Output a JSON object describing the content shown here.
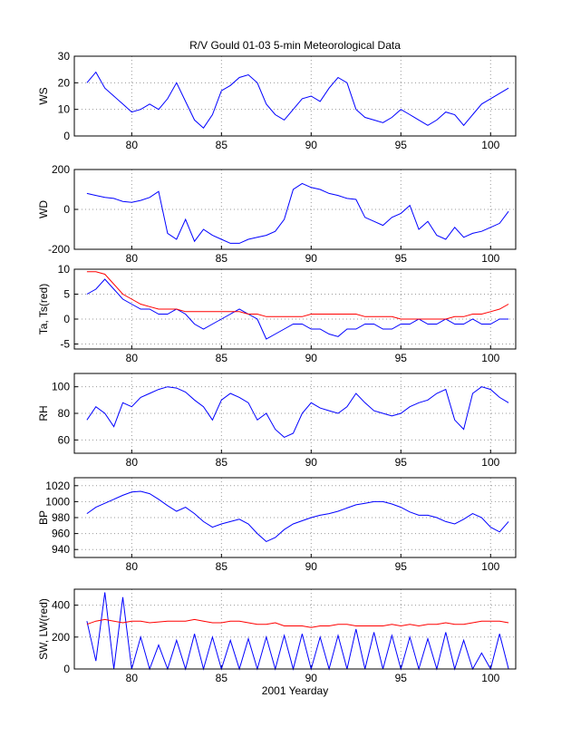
{
  "chart_data": [
    {
      "type": "line",
      "title": "R/V Gould 01-03 5-min Meteorological Data",
      "ylabel": "WS",
      "x": [
        77.5,
        78,
        78.5,
        79,
        79.5,
        80,
        80.5,
        81,
        81.5,
        82,
        82.5,
        83,
        83.5,
        84,
        84.5,
        85,
        85.5,
        86,
        86.5,
        87,
        87.5,
        88,
        88.5,
        89,
        89.5,
        90,
        90.5,
        91,
        91.5,
        92,
        92.5,
        93,
        93.5,
        94,
        94.5,
        95,
        95.5,
        96,
        96.5,
        97,
        97.5,
        98,
        98.5,
        99,
        99.5,
        100,
        100.5,
        101
      ],
      "xlim": [
        76.8,
        101.4
      ],
      "xticks": [
        80,
        85,
        90,
        95,
        100
      ],
      "ylim": [
        0,
        30
      ],
      "yticks": [
        0,
        10,
        20,
        30
      ],
      "grid": true,
      "series": [
        {
          "color": "#0000ff",
          "values": [
            20,
            24,
            18,
            15,
            12,
            9,
            10,
            12,
            10,
            14,
            20,
            13,
            6,
            3,
            8,
            17,
            19,
            22,
            23,
            20,
            12,
            8,
            6,
            10,
            14,
            15,
            13,
            18,
            22,
            20,
            10,
            7,
            6,
            5,
            7,
            10,
            8,
            6,
            4,
            6,
            9,
            8,
            4,
            8,
            12,
            14,
            16,
            18
          ]
        }
      ]
    },
    {
      "type": "line",
      "ylabel": "WD",
      "x": [
        77.5,
        78,
        78.5,
        79,
        79.5,
        80,
        80.5,
        81,
        81.5,
        82,
        82.5,
        83,
        83.5,
        84,
        84.5,
        85,
        85.5,
        86,
        86.5,
        87,
        87.5,
        88,
        88.5,
        89,
        89.5,
        90,
        90.5,
        91,
        91.5,
        92,
        92.5,
        93,
        93.5,
        94,
        94.5,
        95,
        95.5,
        96,
        96.5,
        97,
        97.5,
        98,
        98.5,
        99,
        99.5,
        100,
        100.5,
        101
      ],
      "xlim": [
        76.8,
        101.4
      ],
      "xticks": [
        80,
        85,
        90,
        95,
        100
      ],
      "ylim": [
        -200,
        200
      ],
      "yticks": [
        -200,
        0,
        200
      ],
      "grid": true,
      "series": [
        {
          "color": "#0000ff",
          "values": [
            80,
            70,
            60,
            55,
            40,
            35,
            45,
            60,
            90,
            -120,
            -150,
            -50,
            -160,
            -100,
            -130,
            -150,
            -170,
            -170,
            -150,
            -140,
            -130,
            -110,
            -50,
            100,
            130,
            110,
            100,
            80,
            70,
            55,
            50,
            -40,
            -60,
            -80,
            -40,
            -20,
            20,
            -100,
            -60,
            -130,
            -150,
            -90,
            -140,
            -120,
            -110,
            -90,
            -70,
            -10
          ]
        }
      ]
    },
    {
      "type": "line",
      "ylabel": "Ta, Ts(red)",
      "x": [
        77.5,
        78,
        78.5,
        79,
        79.5,
        80,
        80.5,
        81,
        81.5,
        82,
        82.5,
        83,
        83.5,
        84,
        84.5,
        85,
        85.5,
        86,
        86.5,
        87,
        87.5,
        88,
        88.5,
        89,
        89.5,
        90,
        90.5,
        91,
        91.5,
        92,
        92.5,
        93,
        93.5,
        94,
        94.5,
        95,
        95.5,
        96,
        96.5,
        97,
        97.5,
        98,
        98.5,
        99,
        99.5,
        100,
        100.5,
        101
      ],
      "xlim": [
        76.8,
        101.4
      ],
      "xticks": [
        80,
        85,
        90,
        95,
        100
      ],
      "ylim": [
        -6,
        10
      ],
      "yticks": [
        -5,
        0,
        5,
        10
      ],
      "grid": true,
      "series": [
        {
          "color": "#0000ff",
          "values": [
            5,
            6,
            8,
            6,
            4,
            3,
            2,
            2,
            1,
            1,
            2,
            1,
            -1,
            -2,
            -1,
            0,
            1,
            2,
            1,
            0,
            -4,
            -3,
            -2,
            -1,
            -1,
            -2,
            -2,
            -3,
            -3.5,
            -2,
            -2,
            -1,
            -1,
            -2,
            -2,
            -1,
            -1,
            0,
            -1,
            -1,
            0,
            -1,
            -1,
            0,
            -1,
            -1,
            0,
            0
          ]
        },
        {
          "color": "#ff0000",
          "values": [
            9.5,
            9.5,
            9,
            7,
            5,
            4,
            3,
            2.5,
            2,
            2,
            2,
            1.5,
            1.5,
            1.5,
            1.5,
            1.5,
            1.5,
            1.5,
            1,
            1,
            0.5,
            0.5,
            0.5,
            0.5,
            0.5,
            1,
            1,
            1,
            1,
            1,
            1,
            0.5,
            0.5,
            0.5,
            0.5,
            0,
            0,
            0,
            0,
            0,
            0,
            0.5,
            0.5,
            1,
            1,
            1.5,
            2,
            3
          ]
        }
      ]
    },
    {
      "type": "line",
      "ylabel": "RH",
      "x": [
        77.5,
        78,
        78.5,
        79,
        79.5,
        80,
        80.5,
        81,
        81.5,
        82,
        82.5,
        83,
        83.5,
        84,
        84.5,
        85,
        85.5,
        86,
        86.5,
        87,
        87.5,
        88,
        88.5,
        89,
        89.5,
        90,
        90.5,
        91,
        91.5,
        92,
        92.5,
        93,
        93.5,
        94,
        94.5,
        95,
        95.5,
        96,
        96.5,
        97,
        97.5,
        98,
        98.5,
        99,
        99.5,
        100,
        100.5,
        101
      ],
      "xlim": [
        76.8,
        101.4
      ],
      "xticks": [
        80,
        85,
        90,
        95,
        100
      ],
      "ylim": [
        50,
        110
      ],
      "yticks": [
        60,
        80,
        100
      ],
      "grid": true,
      "series": [
        {
          "color": "#0000ff",
          "values": [
            75,
            85,
            80,
            70,
            88,
            85,
            92,
            95,
            98,
            100,
            99,
            96,
            90,
            85,
            75,
            90,
            95,
            92,
            88,
            75,
            80,
            68,
            62,
            65,
            80,
            88,
            84,
            82,
            80,
            85,
            95,
            88,
            82,
            80,
            78,
            80,
            85,
            88,
            90,
            95,
            98,
            75,
            68,
            95,
            100,
            98,
            92,
            88
          ]
        }
      ]
    },
    {
      "type": "line",
      "ylabel": "BP",
      "x": [
        77.5,
        78,
        78.5,
        79,
        79.5,
        80,
        80.5,
        81,
        81.5,
        82,
        82.5,
        83,
        83.5,
        84,
        84.5,
        85,
        85.5,
        86,
        86.5,
        87,
        87.5,
        88,
        88.5,
        89,
        89.5,
        90,
        90.5,
        91,
        91.5,
        92,
        92.5,
        93,
        93.5,
        94,
        94.5,
        95,
        95.5,
        96,
        96.5,
        97,
        97.5,
        98,
        98.5,
        99,
        99.5,
        100,
        100.5,
        101
      ],
      "xlim": [
        76.8,
        101.4
      ],
      "xticks": [
        80,
        85,
        90,
        95,
        100
      ],
      "ylim": [
        930,
        1030
      ],
      "yticks": [
        940,
        960,
        980,
        1000,
        1020
      ],
      "grid": true,
      "series": [
        {
          "color": "#0000ff",
          "values": [
            985,
            993,
            998,
            1003,
            1008,
            1012,
            1013,
            1010,
            1003,
            995,
            988,
            993,
            985,
            975,
            968,
            972,
            975,
            978,
            972,
            960,
            950,
            955,
            965,
            972,
            976,
            980,
            983,
            985,
            988,
            992,
            996,
            998,
            1000,
            1000,
            997,
            993,
            987,
            983,
            983,
            980,
            975,
            972,
            978,
            985,
            980,
            968,
            962,
            975
          ]
        }
      ]
    },
    {
      "type": "line",
      "ylabel": "SW, LW(red)",
      "xlabel": "2001 Yearday",
      "x": [
        77.5,
        78,
        78.5,
        79,
        79.5,
        80,
        80.5,
        81,
        81.5,
        82,
        82.5,
        83,
        83.5,
        84,
        84.5,
        85,
        85.5,
        86,
        86.5,
        87,
        87.5,
        88,
        88.5,
        89,
        89.5,
        90,
        90.5,
        91,
        91.5,
        92,
        92.5,
        93,
        93.5,
        94,
        94.5,
        95,
        95.5,
        96,
        96.5,
        97,
        97.5,
        98,
        98.5,
        99,
        99.5,
        100,
        100.5,
        101
      ],
      "xlim": [
        76.8,
        101.4
      ],
      "xticks": [
        80,
        85,
        90,
        95,
        100
      ],
      "ylim": [
        0,
        500
      ],
      "yticks": [
        0,
        200,
        400
      ],
      "grid": true,
      "series": [
        {
          "color": "#0000ff",
          "values": [
            300,
            50,
            480,
            0,
            450,
            0,
            200,
            0,
            150,
            0,
            180,
            0,
            220,
            0,
            200,
            0,
            180,
            0,
            190,
            0,
            200,
            0,
            210,
            0,
            220,
            0,
            200,
            0,
            210,
            0,
            250,
            0,
            230,
            0,
            210,
            0,
            200,
            0,
            190,
            0,
            230,
            0,
            180,
            0,
            100,
            0,
            220,
            0
          ]
        },
        {
          "color": "#ff0000",
          "values": [
            280,
            300,
            310,
            300,
            290,
            300,
            300,
            290,
            295,
            300,
            300,
            300,
            310,
            300,
            290,
            290,
            300,
            300,
            290,
            280,
            280,
            290,
            270,
            270,
            270,
            260,
            270,
            270,
            280,
            280,
            270,
            270,
            270,
            270,
            280,
            270,
            280,
            270,
            280,
            280,
            290,
            280,
            280,
            290,
            300,
            300,
            300,
            290
          ]
        }
      ]
    }
  ]
}
